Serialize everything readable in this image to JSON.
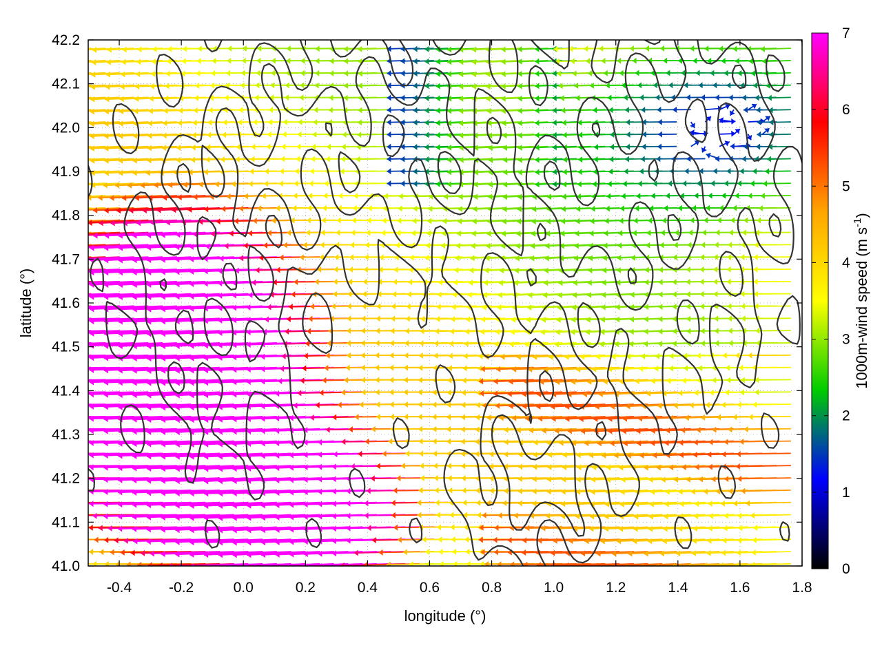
{
  "chart_data": {
    "type": "vector_field_contour",
    "xlabel": "longitude (°)",
    "ylabel": "latitude (°)",
    "xlim": [
      -0.5,
      1.8
    ],
    "ylim": [
      41.0,
      42.2
    ],
    "xticks": [
      -0.4,
      -0.2,
      0.0,
      0.2,
      0.4,
      0.6,
      0.8,
      1.0,
      1.2,
      1.4,
      1.6,
      1.8
    ],
    "yticks": [
      41.0,
      41.1,
      41.2,
      41.3,
      41.4,
      41.5,
      41.6,
      41.7,
      41.8,
      41.9,
      42.0,
      42.1,
      42.2
    ],
    "xtick_labels": [
      "-0.4",
      "-0.2",
      "0.0",
      "0.2",
      "0.4",
      "0.6",
      "0.8",
      "1.0",
      "1.2",
      "1.4",
      "1.6",
      "1.8"
    ],
    "ytick_labels": [
      "41.0",
      "41.1",
      "41.2",
      "41.3",
      "41.4",
      "41.5",
      "41.6",
      "41.7",
      "41.8",
      "41.9",
      "42.0",
      "42.1",
      "42.2"
    ],
    "grid": true,
    "colorbar": {
      "label_prefix": "1000m-wind speed (m s",
      "label_exp": "-1",
      "label_suffix": ")",
      "range": [
        0,
        7
      ],
      "ticks": [
        0,
        1,
        2,
        3,
        4,
        5,
        6,
        7
      ],
      "tick_labels": [
        "0",
        "1",
        "2",
        "3",
        "4",
        "5",
        "6",
        "7"
      ],
      "palette": [
        "#000000",
        "#0000ff",
        "#00cc00",
        "#ffff00",
        "#ffa500",
        "#ff0000",
        "#ff00ff"
      ]
    },
    "wind_field": {
      "description_of_regimes": [
        {
          "region": "west / south-west (lon -0.5 to 0.6, lat 41.0-41.9)",
          "speed_m_s": 7,
          "direction": "toward west, slightly north"
        },
        {
          "region": "central (lon 0.6-1.2, lat 41.4-41.8)",
          "speed_m_s": 3.5,
          "direction": "toward west"
        },
        {
          "region": "south-east (lon 1.0-1.8, lat 41.0-41.5)",
          "speed_m_s": 4.5,
          "direction": "toward west"
        },
        {
          "region": "north-east (lon 1.0-1.8, lat 41.8-42.2)",
          "speed_m_s": 1,
          "direction": "variable"
        }
      ]
    },
    "contours": {
      "color": "#333333",
      "description": "terrain elevation isolines"
    }
  }
}
